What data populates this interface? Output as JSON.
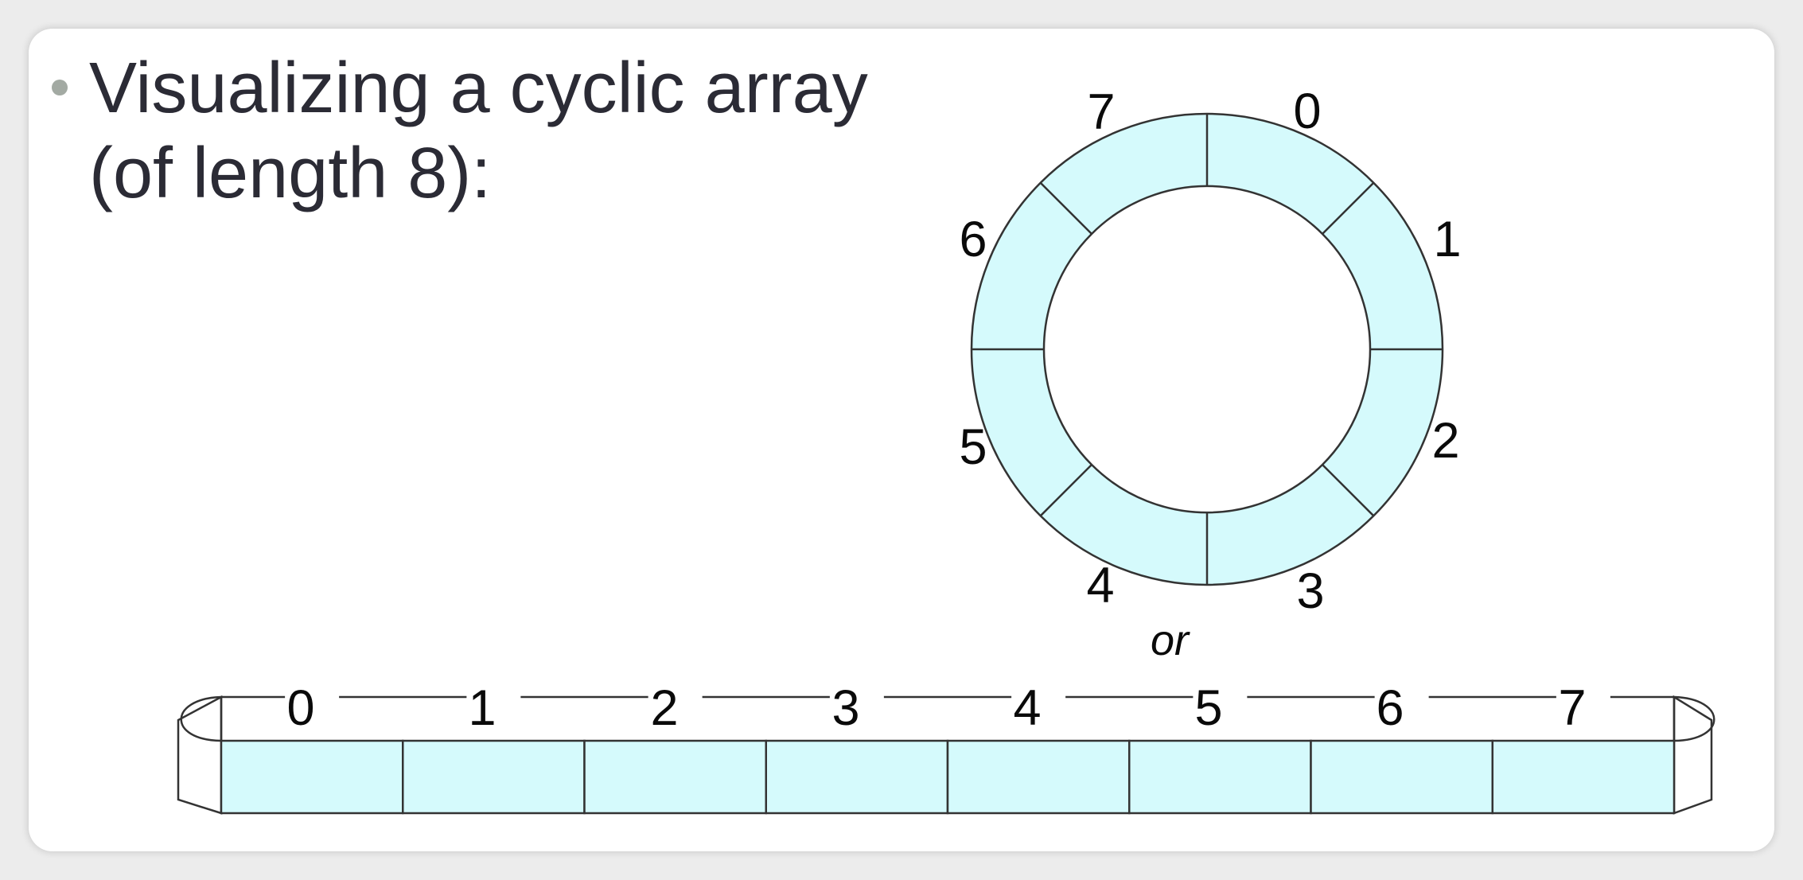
{
  "slide": {
    "bullet_line1": "Visualizing a cyclic array",
    "bullet_line2": "(of length 8):"
  },
  "ring": {
    "labels": [
      "0",
      "1",
      "2",
      "3",
      "4",
      "5",
      "6",
      "7"
    ]
  },
  "separator": "or",
  "strip": {
    "labels": [
      "0",
      "1",
      "2",
      "3",
      "4",
      "5",
      "6",
      "7"
    ]
  },
  "colors": {
    "cell_fill": "#d5fafc",
    "stroke": "#333333",
    "text": "#2b2b35"
  }
}
